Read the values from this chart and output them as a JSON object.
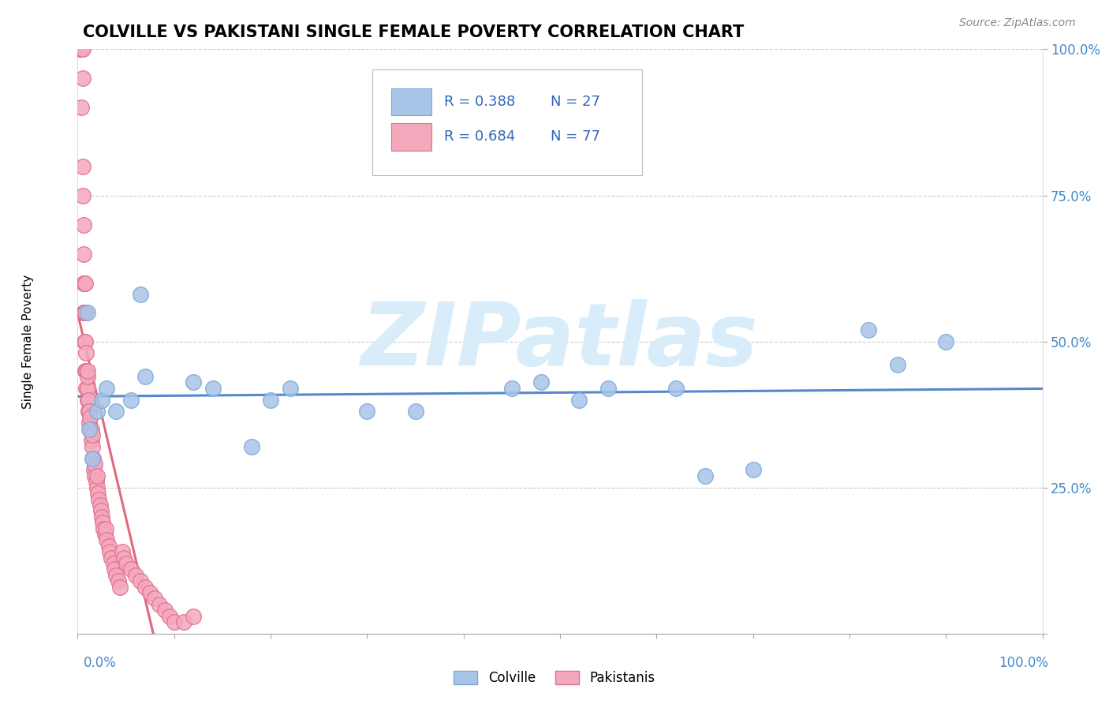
{
  "title": "COLVILLE VS PAKISTANI SINGLE FEMALE POVERTY CORRELATION CHART",
  "source": "Source: ZipAtlas.com",
  "ylabel": "Single Female Poverty",
  "colville_R": 0.388,
  "colville_N": 27,
  "pakistani_R": 0.684,
  "pakistani_N": 77,
  "colville_color": "#A8C4E8",
  "pakistani_color": "#F4A8BC",
  "colville_edge_color": "#7BAAD4",
  "pakistani_edge_color": "#E07090",
  "colville_line_color": "#5588CC",
  "pakistani_line_color": "#E06880",
  "watermark_text": "ZIPatlas",
  "watermark_color": "#D8ECFA",
  "colville_x": [
    1.0,
    1.2,
    1.5,
    2.0,
    2.5,
    3.0,
    4.0,
    5.5,
    6.5,
    7.0,
    12.0,
    14.0,
    18.0,
    20.0,
    22.0,
    30.0,
    35.0,
    45.0,
    48.0,
    52.0,
    55.0,
    62.0,
    65.0,
    70.0,
    82.0,
    85.0,
    90.0
  ],
  "colville_y": [
    55.0,
    35.0,
    30.0,
    38.0,
    40.0,
    42.0,
    38.0,
    40.0,
    58.0,
    44.0,
    43.0,
    42.0,
    32.0,
    40.0,
    42.0,
    38.0,
    38.0,
    42.0,
    43.0,
    40.0,
    42.0,
    42.0,
    27.0,
    28.0,
    52.0,
    46.0,
    50.0
  ],
  "pakistani_x": [
    0.3,
    0.3,
    0.4,
    0.4,
    0.4,
    0.5,
    0.5,
    0.5,
    0.5,
    0.6,
    0.6,
    0.6,
    0.6,
    0.7,
    0.7,
    0.7,
    0.8,
    0.8,
    0.8,
    0.8,
    0.9,
    0.9,
    0.9,
    1.0,
    1.0,
    1.0,
    1.0,
    1.1,
    1.1,
    1.2,
    1.2,
    1.3,
    1.3,
    1.4,
    1.4,
    1.5,
    1.5,
    1.6,
    1.7,
    1.8,
    1.8,
    1.9,
    2.0,
    2.0,
    2.1,
    2.2,
    2.3,
    2.4,
    2.5,
    2.6,
    2.7,
    2.8,
    2.9,
    3.0,
    3.2,
    3.3,
    3.5,
    3.7,
    3.8,
    4.0,
    4.2,
    4.4,
    4.6,
    4.8,
    5.0,
    5.5,
    6.0,
    6.5,
    7.0,
    7.5,
    8.0,
    8.5,
    9.0,
    9.5,
    10.0,
    11.0,
    12.0
  ],
  "pakistani_y": [
    100.0,
    100.0,
    100.0,
    100.0,
    90.0,
    80.0,
    100.0,
    95.0,
    75.0,
    70.0,
    65.0,
    60.0,
    55.0,
    50.0,
    55.0,
    60.0,
    45.0,
    50.0,
    55.0,
    60.0,
    42.0,
    45.0,
    48.0,
    40.0,
    42.0,
    44.0,
    45.0,
    38.0,
    40.0,
    36.0,
    38.0,
    35.0,
    37.0,
    33.0,
    35.0,
    32.0,
    34.0,
    30.0,
    28.0,
    27.0,
    29.0,
    26.0,
    25.0,
    27.0,
    24.0,
    23.0,
    22.0,
    21.0,
    20.0,
    19.0,
    18.0,
    17.0,
    18.0,
    16.0,
    15.0,
    14.0,
    13.0,
    12.0,
    11.0,
    10.0,
    9.0,
    8.0,
    14.0,
    13.0,
    12.0,
    11.0,
    10.0,
    9.0,
    8.0,
    7.0,
    6.0,
    5.0,
    4.0,
    3.0,
    2.0,
    2.0,
    3.0
  ],
  "xlim": [
    0.0,
    100.0
  ],
  "ylim": [
    0.0,
    100.0
  ],
  "yticks": [
    0.0,
    25.0,
    50.0,
    75.0,
    100.0
  ],
  "ytick_labels": [
    "",
    "25.0%",
    "50.0%",
    "75.0%",
    "100.0%"
  ],
  "xtick_positions": [
    0,
    10,
    20,
    30,
    40,
    50,
    60,
    70,
    80,
    90,
    100
  ],
  "background_color": "#FFFFFF",
  "grid_color": "#CCCCCC",
  "title_fontsize": 15,
  "axis_label_fontsize": 11,
  "tick_fontsize": 12,
  "source_text": "Source: ZipAtlas.com"
}
